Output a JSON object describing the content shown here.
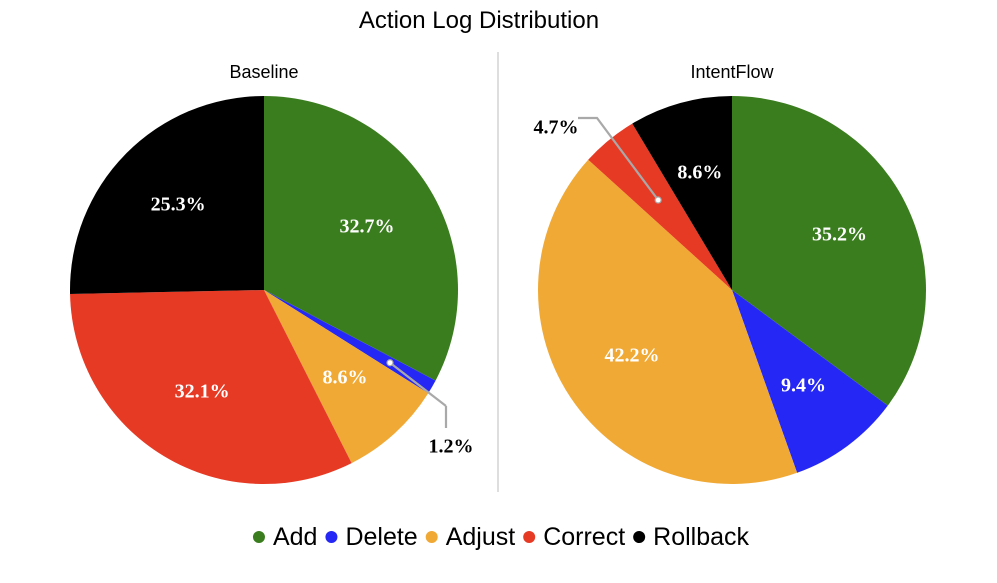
{
  "chart_data": {
    "type": "pie",
    "title": "Action Log Distribution",
    "legend": {
      "placement": "bottom",
      "entries": [
        {
          "name": "Add",
          "color": "#3a7d1e"
        },
        {
          "name": "Delete",
          "color": "#2528f5"
        },
        {
          "name": "Adjust",
          "color": "#f0a935"
        },
        {
          "name": "Correct",
          "color": "#e73a25"
        },
        {
          "name": "Rollback",
          "color": "#000000"
        }
      ]
    },
    "charts": [
      {
        "subtitle": "Baseline",
        "categories": [
          "Add",
          "Delete",
          "Adjust",
          "Correct",
          "Rollback"
        ],
        "values": [
          32.7,
          1.2,
          8.6,
          32.1,
          25.3
        ],
        "labels": [
          "32.7%",
          "1.2%",
          "8.6%",
          "32.1%",
          "25.3%"
        ]
      },
      {
        "subtitle": "IntentFlow",
        "categories": [
          "Add",
          "Delete",
          "Adjust",
          "Correct",
          "Rollback"
        ],
        "values": [
          35.2,
          9.4,
          42.2,
          4.7,
          8.6
        ],
        "labels": [
          "35.2%",
          "9.4%",
          "42.2%",
          "4.7%",
          "8.6%"
        ]
      }
    ]
  }
}
